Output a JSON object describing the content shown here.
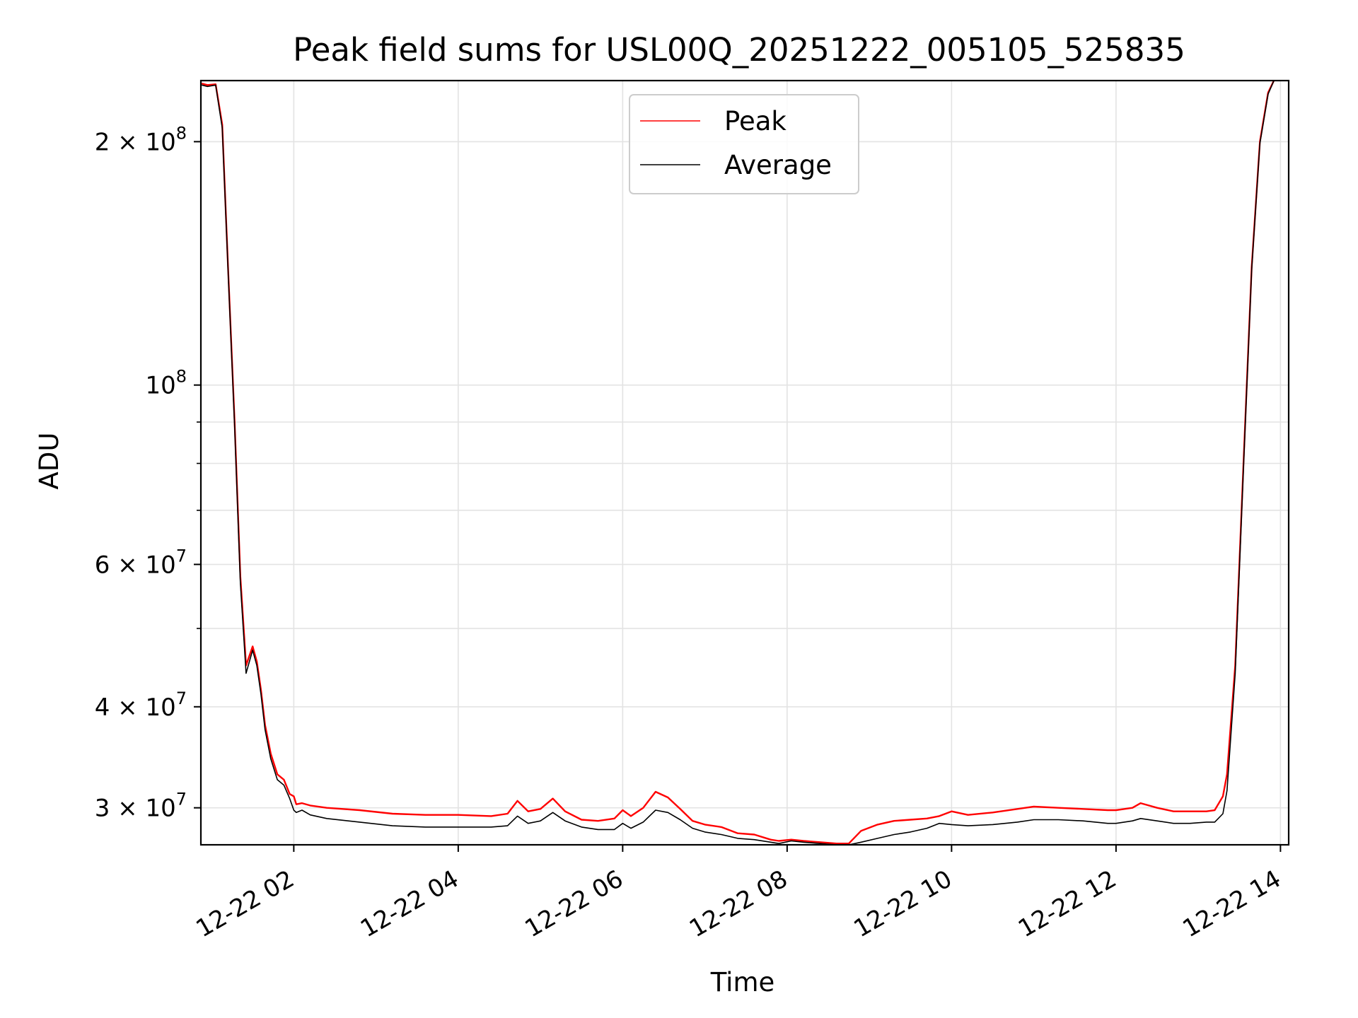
{
  "chart_data": {
    "type": "line",
    "title": "Peak field sums for USL00Q_20251222_005105_525835",
    "xlabel": "Time",
    "ylabel": "ADU",
    "yscale": "log",
    "ylim": [
      27000000,
      238000000
    ],
    "xlim_hours": [
      0.87,
      14.1
    ],
    "grid": true,
    "legend_position": "upper center",
    "x_ticks": [
      {
        "hour": 2,
        "label": "12-22 02"
      },
      {
        "hour": 4,
        "label": "12-22 04"
      },
      {
        "hour": 6,
        "label": "12-22 06"
      },
      {
        "hour": 8,
        "label": "12-22 08"
      },
      {
        "hour": 10,
        "label": "12-22 10"
      },
      {
        "hour": 12,
        "label": "12-22 12"
      },
      {
        "hour": 14,
        "label": "12-22 14"
      }
    ],
    "y_ticks": [
      {
        "value": 30000000,
        "mantissa": "3",
        "exponent": "7"
      },
      {
        "value": 40000000,
        "mantissa": "4",
        "exponent": "7"
      },
      {
        "value": 60000000,
        "mantissa": "6",
        "exponent": "7"
      },
      {
        "value": 100000000,
        "mantissa": "",
        "exponent": "8"
      },
      {
        "value": 200000000,
        "mantissa": "2",
        "exponent": "8"
      }
    ],
    "y_minor_ticks": [
      50000000,
      70000000,
      80000000,
      90000000
    ],
    "series": [
      {
        "name": "Peak",
        "color": "#ff0000",
        "x_hours": [
          0.88,
          0.95,
          1.05,
          1.13,
          1.2,
          1.28,
          1.35,
          1.42,
          1.5,
          1.55,
          1.6,
          1.65,
          1.72,
          1.8,
          1.88,
          1.95,
          2.0,
          2.03,
          2.1,
          2.2,
          2.4,
          2.8,
          3.2,
          3.6,
          4.0,
          4.4,
          4.6,
          4.72,
          4.85,
          5.0,
          5.15,
          5.3,
          5.5,
          5.7,
          5.9,
          6.0,
          6.1,
          6.25,
          6.4,
          6.55,
          6.7,
          6.85,
          7.0,
          7.2,
          7.4,
          7.6,
          7.8,
          7.9,
          8.05,
          8.2,
          8.4,
          8.6,
          8.75,
          8.9,
          9.1,
          9.3,
          9.5,
          9.7,
          9.85,
          10.0,
          10.2,
          10.5,
          10.8,
          11.0,
          11.3,
          11.6,
          11.9,
          12.0,
          12.2,
          12.3,
          12.5,
          12.7,
          12.9,
          13.1,
          13.2,
          13.3,
          13.35,
          13.45,
          13.55,
          13.65,
          13.75,
          13.85,
          13.92
        ],
        "values": [
          236000000,
          235000000,
          235500000,
          210000000,
          140000000,
          90000000,
          58000000,
          45000000,
          47500000,
          45500000,
          42000000,
          38000000,
          35000000,
          33000000,
          32500000,
          31200000,
          31000000,
          30300000,
          30400000,
          30200000,
          30000000,
          29800000,
          29500000,
          29400000,
          29400000,
          29300000,
          29500000,
          30600000,
          29700000,
          29900000,
          30800000,
          29700000,
          29000000,
          28900000,
          29100000,
          29800000,
          29300000,
          30000000,
          31400000,
          30900000,
          29900000,
          28900000,
          28600000,
          28400000,
          27900000,
          27800000,
          27400000,
          27300000,
          27400000,
          27300000,
          27200000,
          27100000,
          27100000,
          28100000,
          28600000,
          28900000,
          29000000,
          29100000,
          29300000,
          29700000,
          29400000,
          29600000,
          29900000,
          30100000,
          30000000,
          29900000,
          29800000,
          29800000,
          30000000,
          30400000,
          30000000,
          29700000,
          29700000,
          29700000,
          29800000,
          31000000,
          33000000,
          45000000,
          80000000,
          140000000,
          200000000,
          230000000,
          238000000
        ]
      },
      {
        "name": "Average",
        "color": "#000000",
        "x_hours": [
          0.88,
          0.95,
          1.05,
          1.13,
          1.2,
          1.28,
          1.35,
          1.42,
          1.5,
          1.55,
          1.6,
          1.65,
          1.72,
          1.8,
          1.88,
          1.95,
          2.0,
          2.03,
          2.1,
          2.2,
          2.4,
          2.8,
          3.2,
          3.6,
          4.0,
          4.4,
          4.6,
          4.72,
          4.85,
          5.0,
          5.15,
          5.3,
          5.5,
          5.7,
          5.9,
          6.0,
          6.1,
          6.25,
          6.4,
          6.55,
          6.7,
          6.85,
          7.0,
          7.2,
          7.4,
          7.6,
          7.8,
          7.9,
          8.05,
          8.2,
          8.4,
          8.6,
          8.75,
          8.9,
          9.1,
          9.3,
          9.5,
          9.7,
          9.85,
          10.0,
          10.2,
          10.5,
          10.8,
          11.0,
          11.3,
          11.6,
          11.9,
          12.0,
          12.2,
          12.3,
          12.5,
          12.7,
          12.9,
          13.1,
          13.2,
          13.3,
          13.35,
          13.45,
          13.55,
          13.65,
          13.75,
          13.85,
          13.92
        ],
        "values": [
          235000000,
          234000000,
          235000000,
          208000000,
          139000000,
          89000000,
          57000000,
          44000000,
          47000000,
          45000000,
          41500000,
          37500000,
          34500000,
          32500000,
          32000000,
          30800000,
          29800000,
          29600000,
          29800000,
          29400000,
          29100000,
          28800000,
          28500000,
          28400000,
          28400000,
          28400000,
          28500000,
          29300000,
          28700000,
          28900000,
          29600000,
          28900000,
          28400000,
          28200000,
          28200000,
          28700000,
          28300000,
          28800000,
          29800000,
          29600000,
          29000000,
          28300000,
          28000000,
          27800000,
          27500000,
          27400000,
          27200000,
          27100000,
          27300000,
          27200000,
          27100000,
          27000000,
          27000000,
          27200000,
          27500000,
          27800000,
          28000000,
          28300000,
          28700000,
          28600000,
          28500000,
          28600000,
          28800000,
          29000000,
          29000000,
          28900000,
          28700000,
          28700000,
          28900000,
          29100000,
          28900000,
          28700000,
          28700000,
          28800000,
          28800000,
          29500000,
          31500000,
          44000000,
          79000000,
          139000000,
          199000000,
          229000000,
          238000000
        ]
      }
    ]
  }
}
